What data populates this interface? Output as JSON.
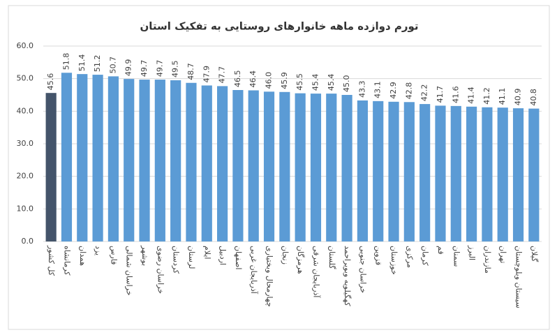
{
  "chart_data": {
    "type": "bar",
    "title": "تورم دوازده ماهه خانوارهای روستایی به تفکیک استان",
    "categories": [
      "کل کشور",
      "کرمانشاه",
      "همدان",
      "یزد",
      "فارس",
      "خراسان شمالی",
      "بوشهر",
      "خراسان رضوی",
      "کردستان",
      "لرستان",
      "ایلام",
      "اردبیل",
      "اصفهان",
      "آذربایجان غربی",
      "چهارمحال وبختیاری",
      "زنجان",
      "هرمزگان",
      "آذربایجان شرقی",
      "گلستان",
      "کهگیلویه وبویراحمد",
      "خراسان جنوبی",
      "قزوین",
      "خوزستان",
      "مرکزی",
      "کرمان",
      "قم",
      "سمنان",
      "البرز",
      "مازندران",
      "تهران",
      "سیستان وبلوچستان",
      "گیلان"
    ],
    "values": [
      45.6,
      51.8,
      51.4,
      51.2,
      50.7,
      49.9,
      49.7,
      49.7,
      49.5,
      48.7,
      47.9,
      47.7,
      46.5,
      46.4,
      46,
      45.9,
      45.5,
      45.4,
      45.4,
      45,
      43.3,
      43.1,
      42.9,
      42.8,
      42.2,
      41.7,
      41.6,
      41.4,
      41.2,
      41.1,
      40.9,
      40.8
    ],
    "value_labels": [
      "45.6",
      "51.8",
      "51.4",
      "51.2",
      "50.7",
      "49.9",
      "49.7",
      "49.7",
      "49.5",
      "48.7",
      "47.9",
      "47.7",
      "46.5",
      "46.4",
      "46.0",
      "45.9",
      "45.5",
      "45.4",
      "45.4",
      "45.0",
      "43.3",
      "43.1",
      "42.9",
      "42.8",
      "42.2",
      "41.7",
      "41.6",
      "41.4",
      "41.2",
      "41.1",
      "40.9",
      "40.8"
    ],
    "colors": [
      "#44546a",
      "#5b9bd5",
      "#5b9bd5",
      "#5b9bd5",
      "#5b9bd5",
      "#5b9bd5",
      "#5b9bd5",
      "#5b9bd5",
      "#5b9bd5",
      "#5b9bd5",
      "#5b9bd5",
      "#5b9bd5",
      "#5b9bd5",
      "#5b9bd5",
      "#5b9bd5",
      "#5b9bd5",
      "#5b9bd5",
      "#5b9bd5",
      "#5b9bd5",
      "#5b9bd5",
      "#5b9bd5",
      "#5b9bd5",
      "#5b9bd5",
      "#5b9bd5",
      "#5b9bd5",
      "#5b9bd5",
      "#5b9bd5",
      "#5b9bd5",
      "#5b9bd5",
      "#5b9bd5",
      "#5b9bd5",
      "#5b9bd5"
    ],
    "ylim": [
      0,
      60
    ],
    "yticks": [
      {
        "value": 0,
        "label": "0.0"
      },
      {
        "value": 10,
        "label": "10.0"
      },
      {
        "value": 20,
        "label": "20.0"
      },
      {
        "value": 30,
        "label": "30.0"
      },
      {
        "value": 40,
        "label": "40.0"
      },
      {
        "value": 50,
        "label": "50.0"
      },
      {
        "value": 60,
        "label": "60.0"
      }
    ],
    "grid": true
  }
}
